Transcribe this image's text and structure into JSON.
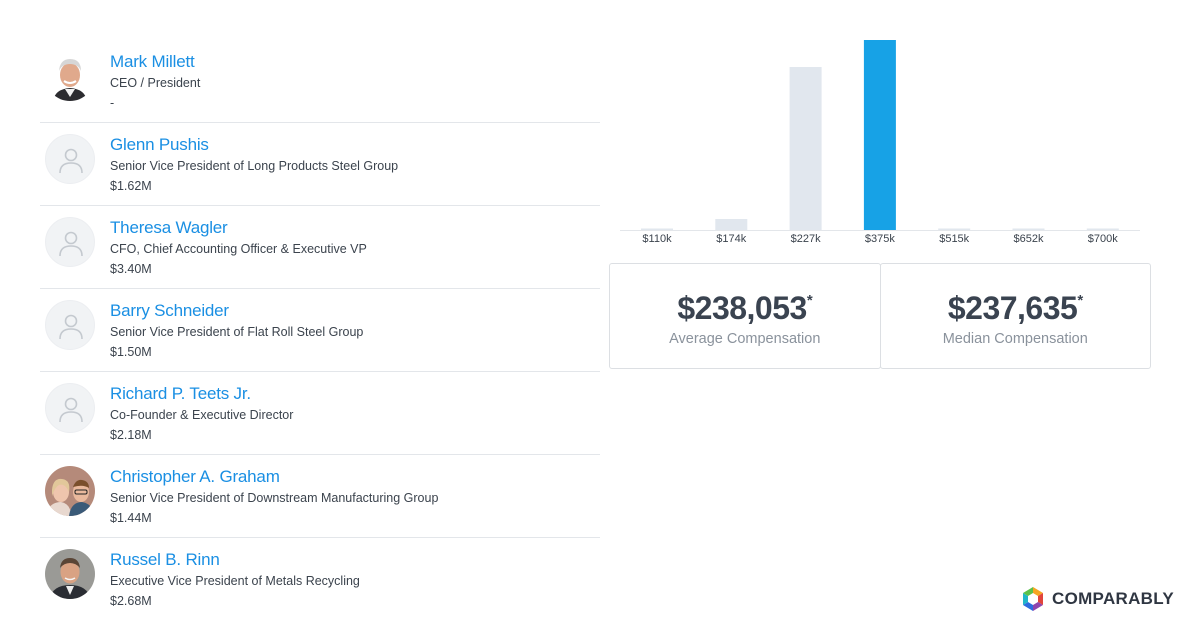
{
  "executives": [
    {
      "name": "Mark Millett",
      "title": "CEO / President",
      "compensation": "-",
      "avatar": "photo-man-white-hair"
    },
    {
      "name": "Glenn Pushis",
      "title": "Senior Vice President of Long Products Steel Group",
      "compensation": "$1.62M",
      "avatar": "placeholder-person-icon"
    },
    {
      "name": "Theresa Wagler",
      "title": "CFO, Chief Accounting Officer & Executive VP",
      "compensation": "$3.40M",
      "avatar": "placeholder-person-icon"
    },
    {
      "name": "Barry Schneider",
      "title": "Senior Vice President of Flat Roll Steel Group",
      "compensation": "$1.50M",
      "avatar": "placeholder-person-icon"
    },
    {
      "name": "Richard P. Teets Jr.",
      "title": "Co-Founder & Executive Director",
      "compensation": "$2.18M",
      "avatar": "placeholder-person-icon"
    },
    {
      "name": "Christopher A. Graham",
      "title": "Senior Vice President of Downstream Manufacturing Group",
      "compensation": "$1.44M",
      "avatar": "photo-two-people"
    },
    {
      "name": "Russel B. Rinn",
      "title": "Executive Vice President of Metals Recycling",
      "compensation": "$2.68M",
      "avatar": "photo-man-suit"
    }
  ],
  "chart_data": {
    "type": "bar",
    "categories": [
      "$110k",
      "$174k",
      "$227k",
      "$375k",
      "$515k",
      "$652k",
      "$700k"
    ],
    "values": [
      1.5,
      11,
      163,
      190,
      0.5,
      0.5,
      0.5
    ],
    "highlight_index": 3,
    "colors": {
      "bar": "#e1e7ee",
      "highlight": "#17a2e6",
      "axis": "#e3e6ea",
      "tick_label": "#3b434d"
    }
  },
  "stats": {
    "average": {
      "value": "$238,053",
      "marker": "*",
      "label": "Average Compensation"
    },
    "median": {
      "value": "$237,635",
      "marker": "*",
      "label": "Median Compensation"
    }
  },
  "brand": {
    "name": "COMPARABLY"
  }
}
